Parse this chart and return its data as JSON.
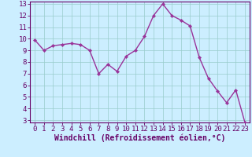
{
  "x": [
    0,
    1,
    2,
    3,
    4,
    5,
    6,
    7,
    8,
    9,
    10,
    11,
    12,
    13,
    14,
    15,
    16,
    17,
    18,
    19,
    20,
    21,
    22,
    23
  ],
  "y": [
    9.9,
    9.0,
    9.4,
    9.5,
    9.6,
    9.5,
    9.0,
    7.0,
    7.8,
    7.2,
    8.5,
    9.0,
    10.2,
    12.0,
    13.0,
    12.0,
    11.6,
    11.1,
    8.4,
    6.6,
    5.5,
    4.5,
    5.6,
    2.8
  ],
  "xlabel": "Windchill (Refroidissement éolien,°C)",
  "ylim": [
    2.8,
    13.2
  ],
  "yticks": [
    3,
    4,
    5,
    6,
    7,
    8,
    9,
    10,
    11,
    12,
    13
  ],
  "xticks": [
    0,
    1,
    2,
    3,
    4,
    5,
    6,
    7,
    8,
    9,
    10,
    11,
    12,
    13,
    14,
    15,
    16,
    17,
    18,
    19,
    20,
    21,
    22,
    23
  ],
  "line_color": "#993399",
  "marker_color": "#993399",
  "bg_color": "#cceeff",
  "grid_color": "#99cccc",
  "border_color": "#660066",
  "tick_color": "#660066",
  "xlabel_fontsize": 7.0,
  "tick_fontsize": 6.5,
  "linewidth": 1.0,
  "markersize": 2.2
}
